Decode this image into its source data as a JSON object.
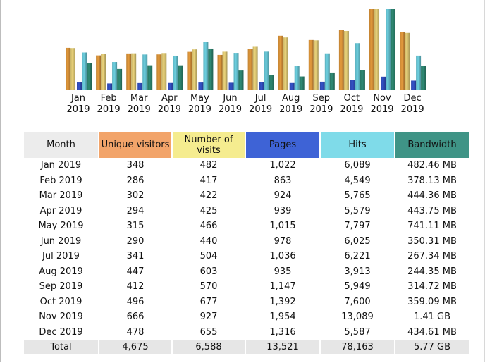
{
  "chart_data": {
    "type": "bar",
    "categories": [
      "Jan\n2019",
      "Feb\n2019",
      "Mar\n2019",
      "Apr\n2019",
      "May\n2019",
      "Jun\n2019",
      "Jul\n2019",
      "Aug\n2019",
      "Sep\n2019",
      "Oct\n2019",
      "Nov\n2019",
      "Dec\n2019"
    ],
    "month_lines": [
      [
        "Jan",
        "2019"
      ],
      [
        "Feb",
        "2019"
      ],
      [
        "Mar",
        "2019"
      ],
      [
        "Apr",
        "2019"
      ],
      [
        "May",
        "2019"
      ],
      [
        "Jun",
        "2019"
      ],
      [
        "Jul",
        "2019"
      ],
      [
        "Aug",
        "2019"
      ],
      [
        "Sep",
        "2019"
      ],
      [
        "Oct",
        "2019"
      ],
      [
        "Nov",
        "2019"
      ],
      [
        "Dec",
        "2019"
      ]
    ],
    "series": [
      {
        "name": "Unique visitors",
        "color": "#e49a3c",
        "values": [
          348,
          286,
          302,
          294,
          315,
          290,
          341,
          447,
          412,
          496,
          666,
          478
        ]
      },
      {
        "name": "Number of visits",
        "color": "#ead37a",
        "values": [
          482,
          417,
          422,
          425,
          466,
          440,
          504,
          603,
          570,
          677,
          927,
          655
        ]
      },
      {
        "name": "Pages",
        "color": "#3452c8",
        "values": [
          1022,
          863,
          924,
          939,
          1015,
          978,
          1036,
          935,
          1147,
          1392,
          1954,
          1316
        ]
      },
      {
        "name": "Hits",
        "color": "#6ccfdf",
        "values": [
          6089,
          4549,
          5765,
          5579,
          7797,
          6025,
          6221,
          3913,
          5949,
          7600,
          13089,
          5587
        ]
      },
      {
        "name": "Bandwidth",
        "color": "#2f8a74",
        "values": [
          482.46,
          378.13,
          444.36,
          443.75,
          741.11,
          350.31,
          267.34,
          244.35,
          314.72,
          359.09,
          1444,
          434.61
        ]
      }
    ],
    "title": "",
    "xlabel": "",
    "ylabel": ""
  },
  "table": {
    "headers": {
      "month": "Month",
      "unique": "Unique visitors",
      "visits": "Number of visits",
      "pages": "Pages",
      "hits": "Hits",
      "bandwidth": "Bandwidth"
    },
    "rows": [
      [
        "Jan 2019",
        "348",
        "482",
        "1,022",
        "6,089",
        "482.46 MB"
      ],
      [
        "Feb 2019",
        "286",
        "417",
        "863",
        "4,549",
        "378.13 MB"
      ],
      [
        "Mar 2019",
        "302",
        "422",
        "924",
        "5,765",
        "444.36 MB"
      ],
      [
        "Apr 2019",
        "294",
        "425",
        "939",
        "5,579",
        "443.75 MB"
      ],
      [
        "May 2019",
        "315",
        "466",
        "1,015",
        "7,797",
        "741.11 MB"
      ],
      [
        "Jun 2019",
        "290",
        "440",
        "978",
        "6,025",
        "350.31 MB"
      ],
      [
        "Jul 2019",
        "341",
        "504",
        "1,036",
        "6,221",
        "267.34 MB"
      ],
      [
        "Aug 2019",
        "447",
        "603",
        "935",
        "3,913",
        "244.35 MB"
      ],
      [
        "Sep 2019",
        "412",
        "570",
        "1,147",
        "5,949",
        "314.72 MB"
      ],
      [
        "Oct 2019",
        "496",
        "677",
        "1,392",
        "7,600",
        "359.09 MB"
      ],
      [
        "Nov 2019",
        "666",
        "927",
        "1,954",
        "13,089",
        "1.41 GB"
      ],
      [
        "Dec 2019",
        "478",
        "655",
        "1,316",
        "5,587",
        "434.61 MB"
      ]
    ],
    "total": [
      "Total",
      "4,675",
      "6,588",
      "13,521",
      "78,163",
      "5.77 GB"
    ]
  }
}
